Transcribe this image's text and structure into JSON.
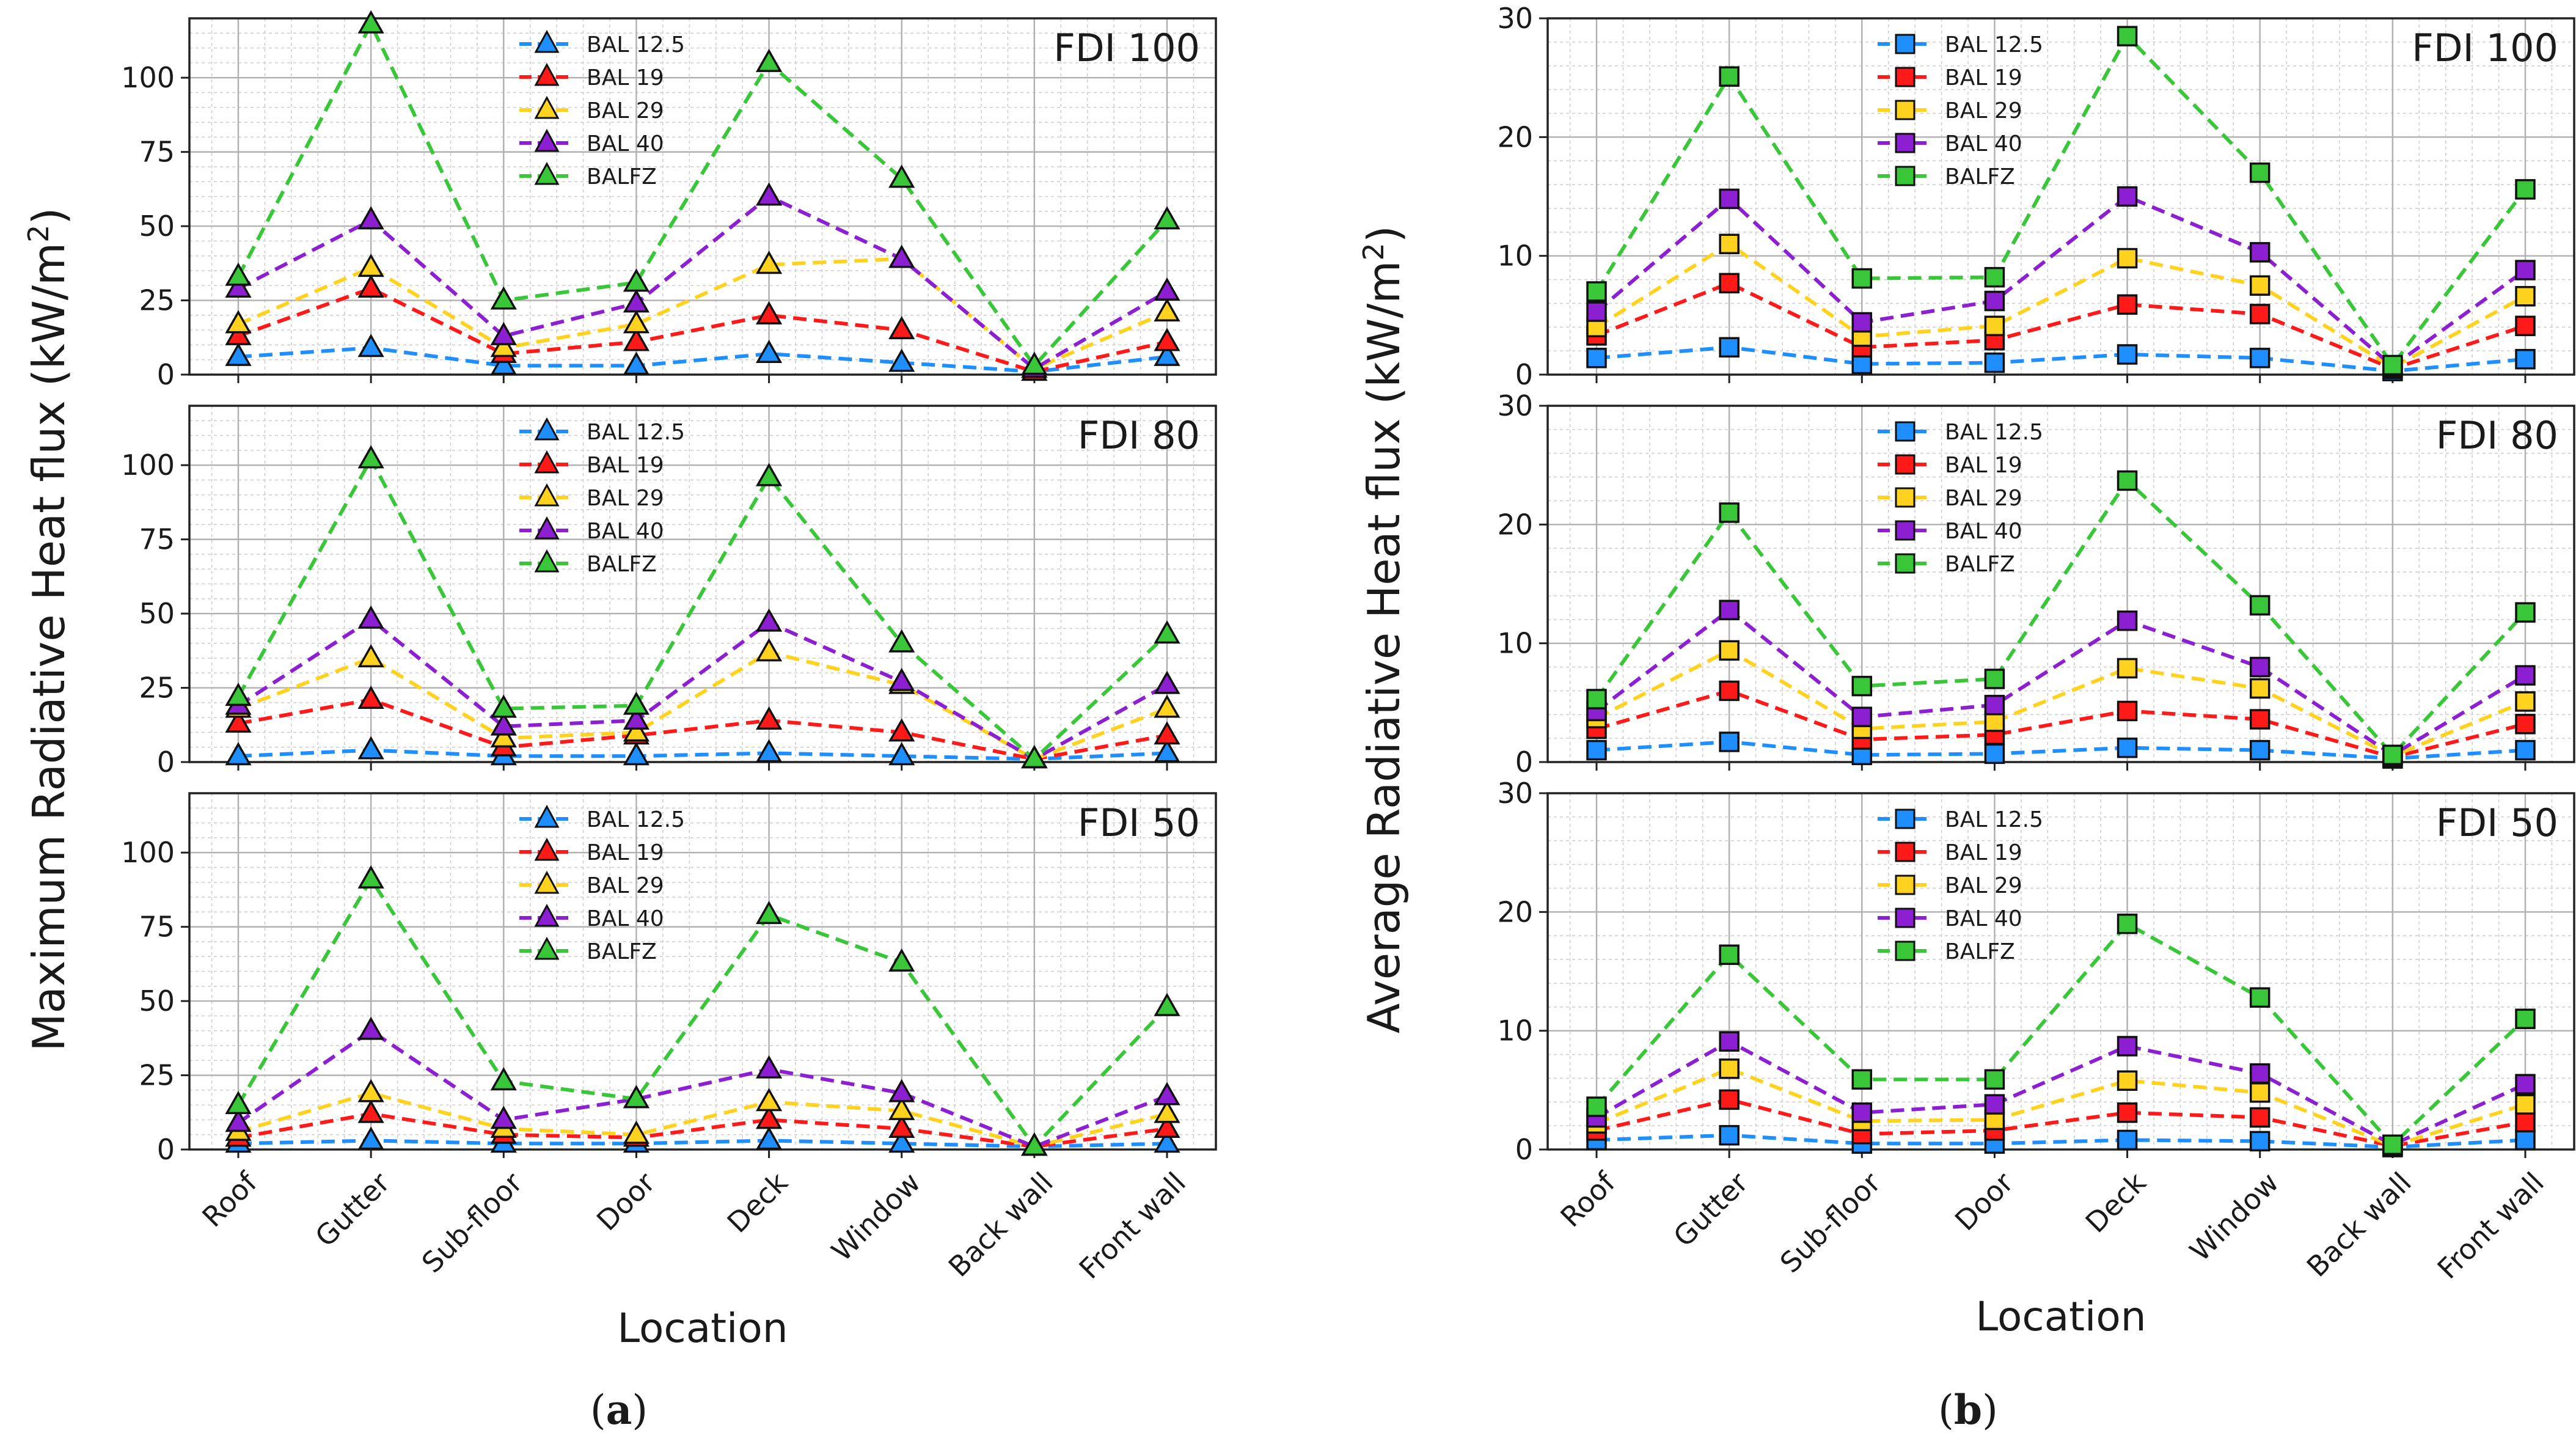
{
  "figure": {
    "left_ylabel": "Maximum Radiative Heat flux (kW/m²)",
    "left_ylabel_main": "Maximum Radiative Heat flux (kW/m",
    "right_ylabel": "Average Radiative Heat flux (kW/m²)",
    "right_ylabel_main": "Average Radiative Heat flux (kW/m",
    "ylabel_sup": "2",
    "ylabel_close": ")",
    "xlabel": "Location",
    "caption_a": {
      "open": "(",
      "letter": "a",
      "close": ")"
    },
    "caption_b": {
      "open": "(",
      "letter": "b",
      "close": ")"
    }
  },
  "chart_data": [
    {
      "type": "line",
      "group": "a",
      "marker": "triangle",
      "panel_label": "FDI 100",
      "xlabel": "",
      "ylabel": "Maximum Radiative Heat flux (kW/m²)",
      "categories": [
        "Roof",
        "Gutter",
        "Sub-floor",
        "Door",
        "Deck",
        "Window",
        "Back wall",
        "Front wall"
      ],
      "ylim": [
        0,
        120
      ],
      "yticks": [
        0,
        25,
        50,
        75,
        100
      ],
      "grid": true,
      "legend_position": "top-center",
      "series": [
        {
          "name": "BAL 12.5",
          "color": "#1f8fff",
          "values": [
            6,
            9,
            3,
            3,
            7,
            4,
            1,
            6
          ]
        },
        {
          "name": "BAL 19",
          "color": "#ff1a1a",
          "values": [
            13,
            29,
            7,
            11,
            20,
            15,
            1,
            11
          ]
        },
        {
          "name": "BAL 29",
          "color": "#ffd21f",
          "values": [
            17,
            36,
            9,
            17,
            37,
            39,
            2,
            21
          ]
        },
        {
          "name": "BAL 40",
          "color": "#8b1fd1",
          "values": [
            29,
            52,
            13,
            24,
            60,
            39,
            2,
            28
          ]
        },
        {
          "name": "BALFZ",
          "color": "#39c739",
          "values": [
            33,
            118,
            25,
            31,
            105,
            66,
            3,
            52
          ]
        }
      ]
    },
    {
      "type": "line",
      "group": "a",
      "marker": "triangle",
      "panel_label": "FDI 80",
      "xlabel": "",
      "ylabel": "Maximum Radiative Heat flux (kW/m²)",
      "categories": [
        "Roof",
        "Gutter",
        "Sub-floor",
        "Door",
        "Deck",
        "Window",
        "Back wall",
        "Front wall"
      ],
      "ylim": [
        0,
        120
      ],
      "yticks": [
        0,
        25,
        50,
        75,
        100
      ],
      "grid": true,
      "legend_position": "top-center",
      "series": [
        {
          "name": "BAL 12.5",
          "color": "#1f8fff",
          "values": [
            2,
            4,
            2,
            2,
            3,
            2,
            1,
            3
          ]
        },
        {
          "name": "BAL 19",
          "color": "#ff1a1a",
          "values": [
            13,
            21,
            5,
            9,
            14,
            10,
            1,
            9
          ]
        },
        {
          "name": "BAL 29",
          "color": "#ffd21f",
          "values": [
            18,
            35,
            8,
            10,
            37,
            26,
            1,
            18
          ]
        },
        {
          "name": "BAL 40",
          "color": "#8b1fd1",
          "values": [
            19,
            48,
            12,
            14,
            47,
            27,
            1,
            26
          ]
        },
        {
          "name": "BALFZ",
          "color": "#39c739",
          "values": [
            22,
            102,
            18,
            19,
            96,
            40,
            1,
            43
          ]
        }
      ]
    },
    {
      "type": "line",
      "group": "a",
      "marker": "triangle",
      "panel_label": "FDI 50",
      "xlabel": "Location",
      "ylabel": "Maximum Radiative Heat flux (kW/m²)",
      "categories": [
        "Roof",
        "Gutter",
        "Sub-floor",
        "Door",
        "Deck",
        "Window",
        "Back wall",
        "Front wall"
      ],
      "ylim": [
        0,
        120
      ],
      "yticks": [
        0,
        25,
        50,
        75,
        100
      ],
      "grid": true,
      "legend_position": "top-center",
      "series": [
        {
          "name": "BAL 12.5",
          "color": "#1f8fff",
          "values": [
            2,
            3,
            2,
            2,
            3,
            2,
            1,
            2
          ]
        },
        {
          "name": "BAL 19",
          "color": "#ff1a1a",
          "values": [
            4,
            12,
            5,
            4,
            10,
            7,
            1,
            7
          ]
        },
        {
          "name": "BAL 29",
          "color": "#ffd21f",
          "values": [
            6,
            19,
            7,
            5,
            16,
            13,
            1,
            12
          ]
        },
        {
          "name": "BAL 40",
          "color": "#8b1fd1",
          "values": [
            9,
            40,
            10,
            17,
            27,
            19,
            1,
            18
          ]
        },
        {
          "name": "BALFZ",
          "color": "#39c739",
          "values": [
            15,
            91,
            23,
            17,
            79,
            63,
            1,
            48
          ]
        }
      ]
    },
    {
      "type": "line",
      "group": "b",
      "marker": "square",
      "panel_label": "FDI 100",
      "xlabel": "",
      "ylabel": "Average Radiative Heat flux (kW/m²)",
      "categories": [
        "Roof",
        "Gutter",
        "Sub-floor",
        "Door",
        "Deck",
        "Window",
        "Back wall",
        "Front wall"
      ],
      "ylim": [
        0,
        30
      ],
      "yticks": [
        0,
        10,
        20,
        30
      ],
      "grid": true,
      "legend_position": "top-center",
      "series": [
        {
          "name": "BAL 12.5",
          "color": "#1f8fff",
          "values": [
            1.4,
            2.3,
            0.9,
            1.0,
            1.7,
            1.4,
            0.3,
            1.3
          ]
        },
        {
          "name": "BAL 19",
          "color": "#ff1a1a",
          "values": [
            3.3,
            7.7,
            2.3,
            2.9,
            5.9,
            5.1,
            0.5,
            4.1
          ]
        },
        {
          "name": "BAL 29",
          "color": "#ffd21f",
          "values": [
            4.0,
            11.0,
            3.2,
            4.1,
            9.8,
            7.5,
            0.6,
            6.6
          ]
        },
        {
          "name": "BAL 40",
          "color": "#8b1fd1",
          "values": [
            5.3,
            14.8,
            4.4,
            6.2,
            15.0,
            10.3,
            0.7,
            8.8
          ]
        },
        {
          "name": "BALFZ",
          "color": "#39c739",
          "values": [
            7.0,
            25.1,
            8.1,
            8.2,
            28.5,
            17.0,
            0.8,
            15.6
          ]
        }
      ]
    },
    {
      "type": "line",
      "group": "b",
      "marker": "square",
      "panel_label": "FDI 80",
      "xlabel": "",
      "ylabel": "Average Radiative Heat flux (kW/m²)",
      "categories": [
        "Roof",
        "Gutter",
        "Sub-floor",
        "Door",
        "Deck",
        "Window",
        "Back wall",
        "Front wall"
      ],
      "ylim": [
        0,
        30
      ],
      "yticks": [
        0,
        10,
        20,
        30
      ],
      "grid": true,
      "legend_position": "top-center",
      "series": [
        {
          "name": "BAL 12.5",
          "color": "#1f8fff",
          "values": [
            1.0,
            1.7,
            0.6,
            0.7,
            1.2,
            1.0,
            0.3,
            1.0
          ]
        },
        {
          "name": "BAL 19",
          "color": "#ff1a1a",
          "values": [
            2.8,
            6.0,
            1.9,
            2.3,
            4.3,
            3.6,
            0.4,
            3.2
          ]
        },
        {
          "name": "BAL 29",
          "color": "#ffd21f",
          "values": [
            3.7,
            9.4,
            2.8,
            3.4,
            7.9,
            6.2,
            0.5,
            5.1
          ]
        },
        {
          "name": "BAL 40",
          "color": "#8b1fd1",
          "values": [
            4.3,
            12.8,
            3.8,
            4.8,
            11.9,
            8.0,
            0.6,
            7.3
          ]
        },
        {
          "name": "BALFZ",
          "color": "#39c739",
          "values": [
            5.3,
            21.0,
            6.4,
            7.0,
            23.7,
            13.2,
            0.6,
            12.6
          ]
        }
      ]
    },
    {
      "type": "line",
      "group": "b",
      "marker": "square",
      "panel_label": "FDI 50",
      "xlabel": "Location",
      "ylabel": "Average Radiative Heat flux (kW/m²)",
      "categories": [
        "Roof",
        "Gutter",
        "Sub-floor",
        "Door",
        "Deck",
        "Window",
        "Back wall",
        "Front wall"
      ],
      "ylim": [
        0,
        30
      ],
      "yticks": [
        0,
        10,
        20,
        30
      ],
      "grid": true,
      "legend_position": "top-center",
      "series": [
        {
          "name": "BAL 12.5",
          "color": "#1f8fff",
          "values": [
            0.8,
            1.2,
            0.5,
            0.5,
            0.8,
            0.7,
            0.2,
            0.8
          ]
        },
        {
          "name": "BAL 19",
          "color": "#ff1a1a",
          "values": [
            1.6,
            4.2,
            1.3,
            1.6,
            3.1,
            2.7,
            0.3,
            2.3
          ]
        },
        {
          "name": "BAL 29",
          "color": "#ffd21f",
          "values": [
            2.2,
            6.8,
            2.4,
            2.5,
            5.8,
            4.8,
            0.3,
            3.8
          ]
        },
        {
          "name": "BAL 40",
          "color": "#8b1fd1",
          "values": [
            2.7,
            9.1,
            3.1,
            3.8,
            8.7,
            6.4,
            0.4,
            5.5
          ]
        },
        {
          "name": "BALFZ",
          "color": "#39c739",
          "values": [
            3.6,
            16.4,
            5.9,
            5.9,
            19.0,
            12.8,
            0.4,
            11.0
          ]
        }
      ]
    }
  ]
}
